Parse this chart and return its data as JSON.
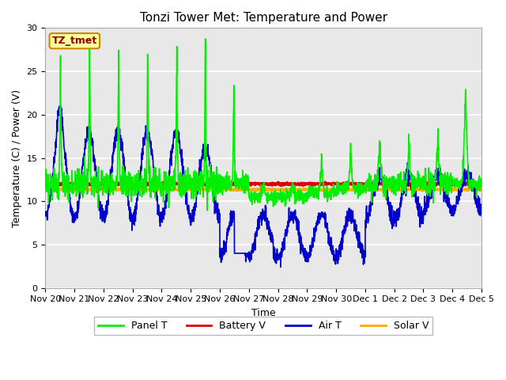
{
  "title": "Tonzi Tower Met: Temperature and Power",
  "xlabel": "Time",
  "ylabel": "Temperature (C) / Power (V)",
  "ylim": [
    0,
    30
  ],
  "n_days": 15,
  "plot_bg_color": "#e8e8e8",
  "fig_bg_color": "#ffffff",
  "grid_color": "#ffffff",
  "tick_labels": [
    "Nov 20",
    "Nov 21",
    "Nov 22",
    "Nov 23",
    "Nov 24",
    "Nov 25",
    "Nov 26",
    "Nov 27",
    "Nov 28",
    "Nov 29",
    "Nov 30",
    "Dec 1",
    "Dec 2",
    "Dec 3",
    "Dec 4",
    "Dec 5"
  ],
  "yticks": [
    0,
    5,
    10,
    15,
    20,
    25,
    30
  ],
  "series": {
    "panel_t": {
      "color": "#00ee00",
      "label": "Panel T",
      "linewidth": 1.2
    },
    "battery_v": {
      "color": "#dd0000",
      "label": "Battery V",
      "linewidth": 2.0
    },
    "air_t": {
      "color": "#0000cc",
      "label": "Air T",
      "linewidth": 1.2
    },
    "solar_v": {
      "color": "#ffaa00",
      "label": "Solar V",
      "linewidth": 2.0
    }
  },
  "label_box_facecolor": "#ffff99",
  "label_box_edgecolor": "#cc8800",
  "label_text": "TZ_tmet",
  "label_text_color": "#880000",
  "title_fontsize": 11,
  "axis_fontsize": 9,
  "tick_fontsize": 8,
  "legend_fontsize": 9
}
